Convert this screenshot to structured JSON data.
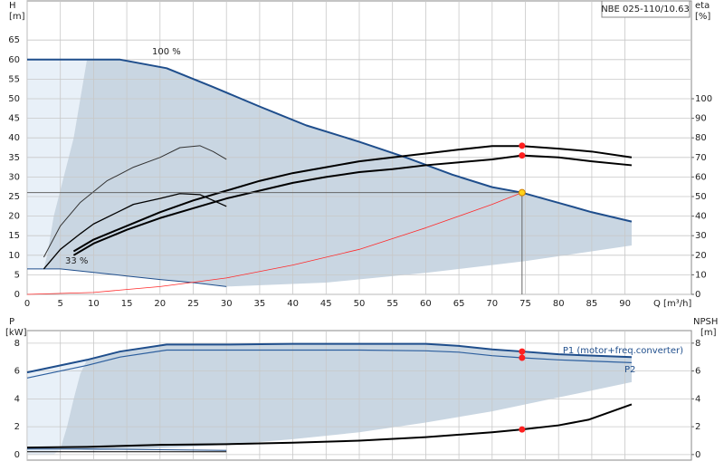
{
  "model": "NBE 025-110/10.63",
  "chart_data": [
    {
      "type": "line",
      "y_label": "H",
      "y_unit": "[m]",
      "y2_label": "eta",
      "y2_unit": "[%]",
      "x_label": "Q [m³/h]",
      "annotations": [
        "100 %",
        "33 %"
      ],
      "xlim": [
        0,
        100
      ],
      "xticks": [
        0,
        5,
        10,
        15,
        20,
        25,
        30,
        35,
        40,
        45,
        50,
        55,
        60,
        65,
        70,
        75,
        80,
        85,
        90
      ],
      "ylim": [
        0,
        75
      ],
      "yticks": [
        0,
        5,
        10,
        15,
        20,
        25,
        30,
        35,
        40,
        45,
        50,
        55,
        60,
        65
      ],
      "y2lim": [
        0,
        150
      ],
      "y2ticks": [
        0,
        10,
        20,
        30,
        40,
        50,
        60,
        70,
        80,
        90,
        100
      ],
      "grid": true,
      "areas": [
        {
          "color": "#e8f0f8",
          "x": [
            0,
            9,
            8,
            7,
            5.5,
            4,
            3,
            2.5,
            0
          ],
          "y": [
            60,
            60,
            50,
            40,
            30,
            20,
            10,
            6.5,
            6.5
          ]
        },
        {
          "color": "#c9d6e2",
          "x": [
            9,
            14,
            21,
            28,
            35,
            42,
            50,
            57,
            64,
            70,
            74.5,
            80,
            85,
            91,
            91,
            75,
            60,
            45,
            30,
            25,
            20,
            15,
            10,
            5,
            2.5,
            3,
            4,
            5.5,
            7,
            8,
            9
          ],
          "y": [
            60,
            60,
            57.8,
            53,
            48,
            43.2,
            39,
            35,
            30.6,
            27.4,
            26,
            23.4,
            21,
            18.6,
            12.5,
            8.5,
            5.5,
            3,
            2,
            3,
            3.8,
            4.7,
            5.6,
            6.5,
            6.5,
            10,
            20,
            30,
            40,
            50,
            60
          ]
        }
      ],
      "series": [
        {
          "color": "#1f4e8c",
          "width": 2,
          "x": [
            0,
            9,
            14,
            21,
            28,
            35,
            42,
            50,
            57,
            64,
            70,
            74.5,
            80,
            85,
            91
          ],
          "values": [
            60,
            60,
            60,
            57.8,
            53,
            48,
            43.2,
            39,
            35,
            30.6,
            27.4,
            26,
            23.4,
            21,
            18.6
          ]
        },
        {
          "color": "#1f4e8c",
          "width": 1,
          "x": [
            0,
            2.5,
            5,
            10,
            15,
            20,
            25,
            30
          ],
          "values": [
            6.5,
            6.5,
            6.5,
            5.6,
            4.7,
            3.8,
            3,
            2
          ]
        },
        {
          "color": "#ff2a2a",
          "width": 0.8,
          "x": [
            0,
            10,
            20,
            30,
            40,
            50,
            60,
            70,
            74.5
          ],
          "values": [
            0,
            0.5,
            2,
            4.2,
            7.5,
            11.5,
            17,
            23,
            26
          ]
        },
        {
          "color": "#000000",
          "width": 2,
          "axis": "y2",
          "x": [
            7,
            10,
            15,
            20,
            25,
            30,
            35,
            40,
            45,
            50,
            55,
            60,
            65,
            70,
            74.5,
            80,
            85,
            91
          ],
          "values": [
            22,
            28,
            35,
            42,
            48,
            53,
            58,
            62,
            65,
            68,
            70,
            72,
            74,
            75.8,
            75.8,
            74.5,
            73,
            70
          ]
        },
        {
          "color": "#000000",
          "width": 2,
          "axis": "y2",
          "x": [
            7,
            10,
            15,
            20,
            25,
            30,
            35,
            40,
            45,
            50,
            55,
            60,
            65,
            70,
            74.5,
            80,
            85,
            91
          ],
          "values": [
            20,
            26,
            33,
            39,
            44,
            49,
            53,
            57,
            60,
            62.5,
            64,
            66,
            67.5,
            69,
            71,
            70,
            68,
            66
          ]
        },
        {
          "color": "#333333",
          "width": 1,
          "axis": "y2",
          "x": [
            2.5,
            5,
            8,
            12,
            16,
            20,
            23,
            26,
            28,
            30
          ],
          "values": [
            19,
            35,
            47,
            58,
            65,
            70,
            75,
            76,
            73,
            69
          ]
        },
        {
          "color": "#000000",
          "width": 1.3,
          "axis": "y2",
          "x": [
            2.5,
            5,
            8,
            10,
            13,
            16,
            20,
            23,
            26,
            30
          ],
          "values": [
            13,
            23,
            31,
            36,
            41,
            46,
            49,
            51.5,
            51,
            45
          ]
        }
      ],
      "points": [
        {
          "color": "#ffd21a",
          "x": 74.5,
          "y": 26,
          "guide": true
        },
        {
          "color": "#ff2020",
          "axis": "y2",
          "x": 74.5,
          "y": 76
        },
        {
          "color": "#ff2020",
          "axis": "y2",
          "x": 74.5,
          "y": 71
        }
      ]
    },
    {
      "type": "line",
      "y_label": "P",
      "y_unit": "[kW]",
      "y2_label": "NPSH",
      "y2_unit": "[m]",
      "xlim": [
        0,
        100
      ],
      "xticks": [
        0,
        5,
        10,
        15,
        20,
        25,
        30,
        35,
        40,
        45,
        50,
        55,
        60,
        65,
        70,
        75,
        80,
        85,
        90
      ],
      "ylim": [
        -0.4,
        8.9
      ],
      "yticks": [
        0,
        2,
        4,
        6,
        8
      ],
      "y2lim": [
        -0.4,
        8.9
      ],
      "y2ticks": [
        0,
        2,
        4,
        6,
        8
      ],
      "grid": true,
      "areas": [
        {
          "color": "#e8f0f8",
          "x": [
            0,
            0,
            9,
            8,
            7,
            6,
            5,
            4
          ],
          "y": [
            0,
            5.9,
            6.8,
            5.8,
            4,
            2,
            0.4,
            0
          ]
        },
        {
          "color": "#c9d6e2",
          "x": [
            9,
            14,
            21,
            30,
            40,
            50,
            60,
            65,
            70,
            74.5,
            80,
            91,
            91,
            80,
            70,
            60,
            50,
            40,
            30,
            20,
            10,
            5,
            6,
            7,
            8,
            9
          ],
          "y": [
            6.8,
            7.4,
            7.9,
            7.9,
            7.95,
            7.95,
            7.95,
            7.8,
            7.55,
            7.4,
            7.2,
            7,
            5.2,
            4.1,
            3.1,
            2.3,
            1.6,
            1.1,
            0.7,
            0.45,
            0.3,
            0.4,
            2,
            4,
            5.8,
            6.8
          ]
        }
      ],
      "series": [
        {
          "name": "P1 (motor+freq.converter)",
          "color": "#1f4e8c",
          "width": 2,
          "x": [
            0,
            9,
            14,
            21,
            30,
            40,
            50,
            60,
            65,
            70,
            74.5,
            80,
            91
          ],
          "values": [
            5.9,
            6.8,
            7.4,
            7.9,
            7.9,
            7.95,
            7.95,
            7.95,
            7.8,
            7.55,
            7.4,
            7.2,
            7
          ]
        },
        {
          "name": "P2",
          "color": "#2d5f9e",
          "width": 1.2,
          "x": [
            0,
            9,
            14,
            21,
            30,
            50,
            60,
            65,
            70,
            74.5,
            80,
            91
          ],
          "values": [
            5.5,
            6.4,
            7,
            7.5,
            7.5,
            7.5,
            7.45,
            7.35,
            7.1,
            6.95,
            6.8,
            6.6
          ]
        },
        {
          "color": "#000000",
          "width": 2,
          "axis": "y2",
          "x": [
            0,
            9,
            20,
            30,
            40,
            50,
            60,
            70,
            74.5,
            80,
            84.5,
            91
          ],
          "values": [
            0.5,
            0.55,
            0.7,
            0.75,
            0.85,
            1,
            1.25,
            1.6,
            1.8,
            2.1,
            2.5,
            3.6
          ]
        },
        {
          "color": "#1f4e8c",
          "width": 1,
          "x": [
            0,
            10,
            20,
            30
          ],
          "values": [
            0.4,
            0.4,
            0.35,
            0.3
          ]
        },
        {
          "color": "#000000",
          "width": 1,
          "x": [
            0,
            10,
            20,
            30
          ],
          "values": [
            0.2,
            0.2,
            0.2,
            0.2
          ]
        }
      ],
      "points": [
        {
          "color": "#ff2020",
          "x": 74.5,
          "y": 7.4
        },
        {
          "color": "#ff2020",
          "x": 74.5,
          "y": 6.95
        },
        {
          "color": "#ff2020",
          "axis": "y2",
          "x": 74.5,
          "y": 1.8
        }
      ]
    }
  ]
}
